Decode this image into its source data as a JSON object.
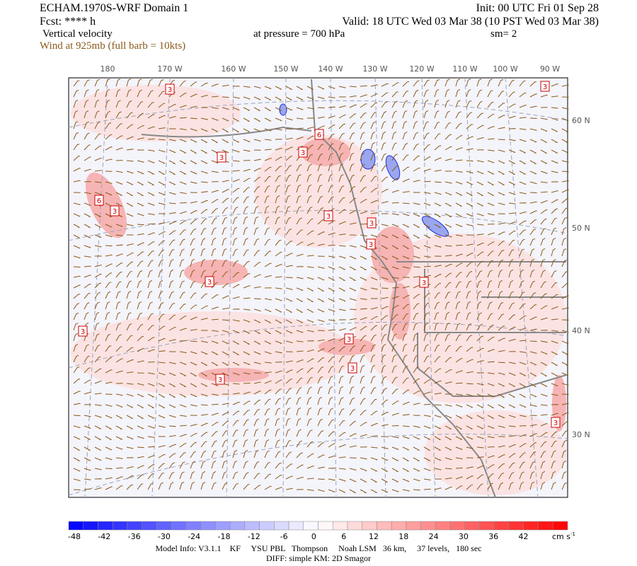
{
  "header": {
    "title": "ECHAM.1970S-WRF Domain 1",
    "init": "Init: 00 UTC Fri 01 Sep 28",
    "fcst": "Fcst: **** h",
    "valid": "Valid: 18 UTC Wed 03 Mar 38 (10 PST Wed 03 Mar 38)",
    "field": "Vertical velocity",
    "pressure": "at pressure =  700 hPa",
    "smooth": "sm= 2",
    "wind": "Wind at 925mb (full barb = 10kts)"
  },
  "map": {
    "lon_labels": [
      "180",
      "170 W",
      "160 W",
      "150 W",
      "140 W",
      "130 W",
      "120 W",
      "110 W",
      "100 W",
      "90 W"
    ],
    "lat_labels": [
      "60 N",
      "50 N",
      "40 N",
      "30 N"
    ],
    "contour_labels": [
      "3",
      "3",
      "6",
      "3",
      "3",
      "6",
      "3",
      "3",
      "3",
      "3",
      "3",
      "3",
      "3",
      "3",
      "3",
      "3",
      "3"
    ]
  },
  "colorbar": {
    "labels": [
      "-48",
      "-42",
      "-36",
      "-30",
      "-24",
      "-18",
      "-12",
      "-6",
      "0",
      "6",
      "12",
      "18",
      "24",
      "30",
      "36",
      "42"
    ],
    "unit": "cm s",
    "unit_exp": "-1"
  },
  "footer": {
    "line1": "Model Info: V3.1.1    KF     YSU PBL   Thompson     Noah LSM   36 km,     37 levels,   180 sec",
    "line2": "DIFF: simple KM: 2D Smagor"
  }
}
